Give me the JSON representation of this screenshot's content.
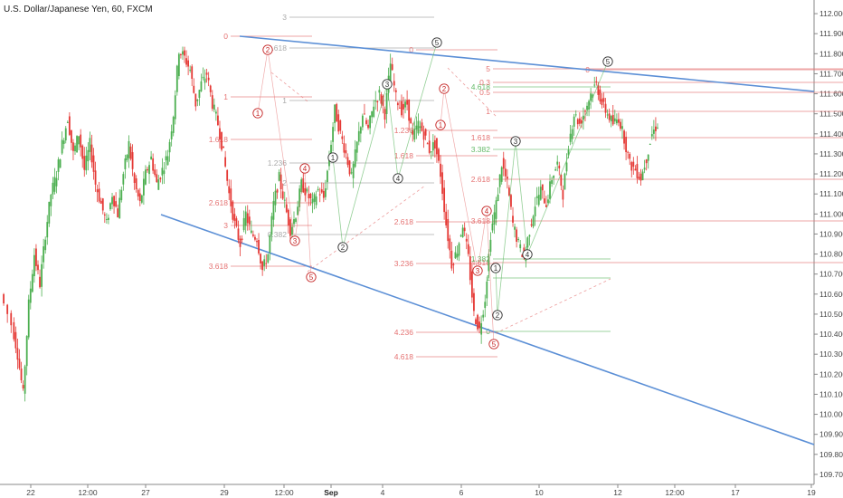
{
  "chart_title": "U.S. Dollar/Japanese Yen, 60, FXCM",
  "chart_data": {
    "type": "candlestick",
    "title": "U.S. Dollar/Japanese Yen, 60, FXCM",
    "ylim": [
      109.65,
      112.05
    ],
    "y_ticks": [
      "112.000",
      "111.900",
      "111.800",
      "111.700",
      "111.600",
      "111.500",
      "111.400",
      "111.300",
      "111.200",
      "111.100",
      "111.000",
      "110.900",
      "110.800",
      "110.700",
      "110.600",
      "110.500",
      "110.400",
      "110.300",
      "110.200",
      "110.100",
      "110.000",
      "109.900",
      "109.800",
      "109.700"
    ],
    "x_ticks": [
      "22",
      "12:00",
      "27",
      "29",
      "12:00",
      "Sep",
      "4",
      "6",
      "10",
      "12",
      "12:00",
      "17",
      "19"
    ],
    "colors": {
      "up": "#4caf50",
      "down": "#e53935",
      "trend": "#5b8fd6",
      "fib_red": "#e57373",
      "fib_green": "#66bb6a"
    },
    "trendlines": [
      {
        "from": [
          29,
          111.86
        ],
        "to": [
          19.5,
          111.58
        ],
        "name": "upper"
      },
      {
        "from": [
          27,
          110.96
        ],
        "to": [
          19.5,
          109.82
        ],
        "name": "lower"
      }
    ],
    "price_path": [
      [
        0,
        110.6
      ],
      [
        2,
        110.45
      ],
      [
        3,
        110.3
      ],
      [
        4,
        110.1
      ],
      [
        5,
        110.55
      ],
      [
        6,
        110.8
      ],
      [
        7,
        110.65
      ],
      [
        8,
        110.9
      ],
      [
        9,
        111.1
      ],
      [
        10,
        111.2
      ],
      [
        11,
        111.35
      ],
      [
        12,
        111.48
      ],
      [
        13,
        111.3
      ],
      [
        14,
        111.4
      ],
      [
        15,
        111.22
      ],
      [
        16,
        111.35
      ],
      [
        17,
        111.15
      ],
      [
        18,
        111.05
      ],
      [
        19,
        110.95
      ],
      [
        20,
        111.1
      ],
      [
        21,
        111.0
      ],
      [
        22,
        111.2
      ],
      [
        23,
        111.35
      ],
      [
        24,
        111.15
      ],
      [
        25,
        111.05
      ],
      [
        26,
        111.2
      ],
      [
        27,
        111.28
      ],
      [
        28,
        111.15
      ],
      [
        29,
        111.22
      ],
      [
        30,
        111.3
      ],
      [
        31,
        111.5
      ],
      [
        32,
        111.82
      ],
      [
        33,
        111.78
      ],
      [
        34,
        111.72
      ],
      [
        35,
        111.55
      ],
      [
        36,
        111.65
      ],
      [
        37,
        111.7
      ],
      [
        38,
        111.55
      ],
      [
        39,
        111.45
      ],
      [
        40,
        111.3
      ],
      [
        41,
        111.1
      ],
      [
        42,
        110.95
      ],
      [
        43,
        110.85
      ],
      [
        44,
        111.0
      ],
      [
        45,
        110.9
      ],
      [
        46,
        110.88
      ],
      [
        47,
        110.72
      ],
      [
        48,
        110.8
      ],
      [
        49,
        111.05
      ],
      [
        50,
        111.18
      ],
      [
        51,
        111.05
      ],
      [
        52,
        110.92
      ],
      [
        53,
        111.0
      ],
      [
        54,
        111.15
      ],
      [
        55,
        111.1
      ],
      [
        56,
        111.05
      ],
      [
        57,
        111.12
      ],
      [
        58,
        111.08
      ],
      [
        59,
        111.28
      ],
      [
        60,
        111.52
      ],
      [
        61,
        111.4
      ],
      [
        62,
        111.3
      ],
      [
        63,
        111.18
      ],
      [
        64,
        111.35
      ],
      [
        65,
        111.5
      ],
      [
        66,
        111.42
      ],
      [
        67,
        111.55
      ],
      [
        68,
        111.6
      ],
      [
        69,
        111.5
      ],
      [
        70,
        111.75
      ],
      [
        71,
        111.58
      ],
      [
        72,
        111.52
      ],
      [
        73,
        111.55
      ],
      [
        74,
        111.38
      ],
      [
        75,
        111.45
      ],
      [
        76,
        111.4
      ],
      [
        77,
        111.32
      ],
      [
        78,
        111.35
      ],
      [
        79,
        111.2
      ],
      [
        80,
        110.95
      ],
      [
        81,
        110.75
      ],
      [
        82,
        110.82
      ],
      [
        83,
        110.95
      ],
      [
        84,
        110.78
      ],
      [
        85,
        110.5
      ],
      [
        86,
        110.42
      ],
      [
        87,
        110.58
      ],
      [
        88,
        110.9
      ],
      [
        89,
        111.05
      ],
      [
        90,
        111.25
      ],
      [
        91,
        111.15
      ],
      [
        92,
        110.95
      ],
      [
        93,
        110.85
      ],
      [
        94,
        110.78
      ],
      [
        95,
        110.92
      ],
      [
        96,
        111.05
      ],
      [
        97,
        111.12
      ],
      [
        98,
        111.05
      ],
      [
        99,
        111.18
      ],
      [
        100,
        111.25
      ],
      [
        101,
        111.1
      ],
      [
        102,
        111.35
      ],
      [
        103,
        111.5
      ],
      [
        104,
        111.45
      ],
      [
        105,
        111.52
      ],
      [
        106,
        111.6
      ],
      [
        107,
        111.65
      ],
      [
        108,
        111.55
      ],
      [
        109,
        111.5
      ],
      [
        110,
        111.45
      ],
      [
        111,
        111.48
      ],
      [
        112,
        111.38
      ],
      [
        113,
        111.25
      ],
      [
        114,
        111.22
      ],
      [
        115,
        111.18
      ],
      [
        116,
        111.28
      ],
      [
        117,
        111.4
      ],
      [
        118,
        111.45
      ]
    ]
  },
  "fib_levels": [
    {
      "label": "3",
      "color": "grey",
      "x1": 320,
      "x2": 480,
      "y": 19
    },
    {
      "label": "0",
      "color": "red",
      "x1": 255,
      "x2": 345,
      "y": 40
    },
    {
      "label": "2.618",
      "color": "grey",
      "x1": 320,
      "x2": 480,
      "y": 53
    },
    {
      "label": "1",
      "color": "red",
      "x1": 255,
      "x2": 345,
      "y": 107
    },
    {
      "label": "1.618",
      "color": "red",
      "x1": 255,
      "x2": 345,
      "y": 154
    },
    {
      "label": "2.618",
      "color": "red",
      "x1": 255,
      "x2": 345,
      "y": 224
    },
    {
      "label": "3",
      "color": "red",
      "x1": 255,
      "x2": 345,
      "y": 249
    },
    {
      "label": "3.618",
      "color": "red",
      "x1": 255,
      "x2": 345,
      "y": 294
    },
    {
      "label": "1",
      "color": "grey",
      "x1": 320,
      "x2": 480,
      "y": 111
    },
    {
      "label": "1.236",
      "color": "red",
      "x1": 460,
      "x2": 550,
      "y": 144
    },
    {
      "label": "1.618",
      "color": "red",
      "x1": 460,
      "x2": 550,
      "y": 172
    },
    {
      "label": "2",
      "color": "grey",
      "x1": 320,
      "x2": 480,
      "y": 202
    },
    {
      "label": "2.618",
      "color": "red",
      "x1": 460,
      "x2": 550,
      "y": 245
    },
    {
      "label": "3.236",
      "color": "red",
      "x1": 460,
      "x2": 550,
      "y": 291
    },
    {
      "label": "4.236",
      "color": "red",
      "x1": 460,
      "x2": 550,
      "y": 367
    },
    {
      "label": "4.618",
      "color": "red",
      "x1": 460,
      "x2": 550,
      "y": 394
    },
    {
      "label": "0",
      "color": "red",
      "x1": 460,
      "x2": 550,
      "y": 55
    },
    {
      "label": "1.236",
      "color": "grey",
      "x1": 320,
      "x2": 480,
      "y": 180
    },
    {
      "label": "0.382",
      "color": "grey",
      "x1": 320,
      "x2": 480,
      "y": 259
    },
    {
      "label": "5",
      "color": "red",
      "x1": 545,
      "x2": 932,
      "y": 76
    },
    {
      "label": "4.618",
      "color": "green",
      "x1": 545,
      "x2": 675,
      "y": 96
    },
    {
      "label": "0.3",
      "color": "red",
      "x1": 545,
      "x2": 932,
      "y": 91
    },
    {
      "label": "0.5",
      "color": "red",
      "x1": 545,
      "x2": 932,
      "y": 102
    },
    {
      "label": "1",
      "color": "red",
      "x1": 545,
      "x2": 932,
      "y": 123
    },
    {
      "label": "1.618",
      "color": "red",
      "x1": 545,
      "x2": 932,
      "y": 152
    },
    {
      "label": "3.382",
      "color": "green",
      "x1": 545,
      "x2": 675,
      "y": 165
    },
    {
      "label": "2.618",
      "color": "red",
      "x1": 545,
      "x2": 932,
      "y": 198
    },
    {
      "label": "3.618",
      "color": "red",
      "x1": 545,
      "x2": 932,
      "y": 244
    },
    {
      "label": "4.618",
      "color": "red",
      "x1": 545,
      "x2": 932,
      "y": 290
    },
    {
      "label": "1.382",
      "color": "green",
      "x1": 545,
      "x2": 675,
      "y": 286
    },
    {
      "label": "1",
      "color": "green",
      "x1": 545,
      "x2": 675,
      "y": 307
    },
    {
      "label": "0",
      "color": "green",
      "x1": 545,
      "x2": 675,
      "y": 366
    },
    {
      "label": "0",
      "color": "red",
      "x1": 655,
      "x2": 932,
      "y": 77
    }
  ],
  "wave_labels": [
    {
      "t": "1",
      "c": "red",
      "x": 285,
      "y": 125
    },
    {
      "t": "2",
      "c": "red",
      "x": 296,
      "y": 55
    },
    {
      "t": "3",
      "c": "red",
      "x": 326,
      "y": 266
    },
    {
      "t": "4",
      "c": "red",
      "x": 337,
      "y": 186
    },
    {
      "t": "5",
      "c": "red",
      "x": 344,
      "y": 306
    },
    {
      "t": "1",
      "c": "dark",
      "x": 368,
      "y": 174
    },
    {
      "t": "2",
      "c": "dark",
      "x": 379,
      "y": 273
    },
    {
      "t": "3",
      "c": "dark",
      "x": 428,
      "y": 93
    },
    {
      "t": "4",
      "c": "dark",
      "x": 440,
      "y": 197
    },
    {
      "t": "5",
      "c": "dark",
      "x": 483,
      "y": 47
    },
    {
      "t": "1",
      "c": "red",
      "x": 487,
      "y": 138
    },
    {
      "t": "2",
      "c": "red",
      "x": 491,
      "y": 98
    },
    {
      "t": "3",
      "c": "red",
      "x": 528,
      "y": 299
    },
    {
      "t": "4",
      "c": "red",
      "x": 538,
      "y": 233
    },
    {
      "t": "5",
      "c": "red",
      "x": 546,
      "y": 380
    },
    {
      "t": "1",
      "c": "dark",
      "x": 548,
      "y": 296
    },
    {
      "t": "2",
      "c": "dark",
      "x": 550,
      "y": 348
    },
    {
      "t": "3",
      "c": "dark",
      "x": 570,
      "y": 156
    },
    {
      "t": "4",
      "c": "dark",
      "x": 583,
      "y": 281
    },
    {
      "t": "5",
      "c": "dark",
      "x": 672,
      "y": 68
    }
  ]
}
